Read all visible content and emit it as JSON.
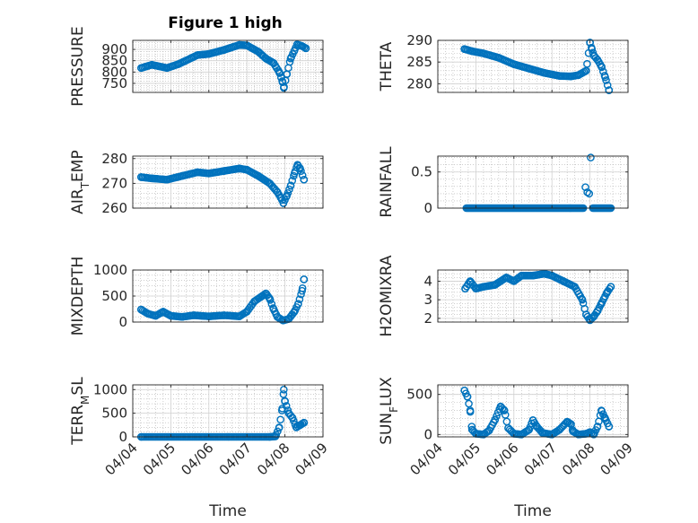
{
  "title": "Figure 1 high",
  "colors": {
    "marker": "#0072BD",
    "axis": "#262626",
    "grid": "#b0b0b0"
  },
  "chart_data": [
    {
      "type": "scatter",
      "id": "pressure",
      "ylabel": "PRESSURE",
      "ylim": [
        710,
        940
      ],
      "yticks": [
        750,
        800,
        850,
        900
      ],
      "ytick_labels": [
        "750",
        "800",
        "850",
        "900"
      ],
      "xlim": [
        0,
        5
      ],
      "xticks": [
        0,
        1,
        2,
        3,
        4,
        5
      ],
      "xtick_labels": [
        "04/04",
        "04/05",
        "04/06",
        "04/07",
        "04/08",
        "04/09"
      ],
      "x_knots": [
        0.22,
        0.5,
        0.9,
        1.2,
        1.7,
        2.0,
        2.4,
        2.8,
        3.0,
        3.3,
        3.5,
        3.7,
        3.85,
        3.93,
        3.97,
        4.05,
        4.15,
        4.25,
        4.32,
        4.45,
        4.55
      ],
      "y_knots": [
        818,
        832,
        818,
        835,
        875,
        880,
        898,
        920,
        918,
        890,
        860,
        840,
        800,
        760,
        730,
        790,
        860,
        895,
        922,
        915,
        905
      ]
    },
    {
      "type": "scatter",
      "id": "theta",
      "ylabel": "THETA",
      "ylim": [
        278,
        290
      ],
      "yticks": [
        280,
        285,
        290
      ],
      "ytick_labels": [
        "280",
        "285",
        "290"
      ],
      "xlim": [
        0,
        5
      ],
      "xticks": [
        0,
        1,
        2,
        3,
        4,
        5
      ],
      "xtick_labels": [
        "04/04",
        "04/05",
        "04/06",
        "04/07",
        "04/08",
        "04/09"
      ],
      "x_knots": [
        0.7,
        0.9,
        1.2,
        1.6,
        2.0,
        2.4,
        2.8,
        3.2,
        3.5,
        3.7,
        3.9,
        4.0,
        4.05,
        4.1,
        4.2,
        4.3,
        4.4,
        4.5
      ],
      "y_knots": [
        288.0,
        287.5,
        287.0,
        286.0,
        284.5,
        283.5,
        282.5,
        281.8,
        281.7,
        282.0,
        283.0,
        289.5,
        288.0,
        286.5,
        285.5,
        284.0,
        281.5,
        278.5
      ]
    },
    {
      "type": "scatter",
      "id": "air_temp",
      "ylabel": "AIR",
      "ylabel_sub": "T",
      "ylabel_suffix": "EMP",
      "ylim": [
        260,
        281
      ],
      "yticks": [
        260,
        270,
        280
      ],
      "ytick_labels": [
        "260",
        "270",
        "280"
      ],
      "xlim": [
        0,
        5
      ],
      "xticks": [
        0,
        1,
        2,
        3,
        4,
        5
      ],
      "xtick_labels": [
        "04/04",
        "04/05",
        "04/06",
        "04/07",
        "04/08",
        "04/09"
      ],
      "x_knots": [
        0.22,
        0.5,
        0.9,
        1.3,
        1.7,
        2.0,
        2.4,
        2.8,
        3.0,
        3.3,
        3.6,
        3.8,
        3.9,
        3.96,
        4.05,
        4.15,
        4.25,
        4.33,
        4.4,
        4.5
      ],
      "y_knots": [
        272.5,
        272.0,
        271.5,
        273.0,
        274.5,
        274.0,
        275.0,
        276.0,
        275.5,
        273.0,
        270.0,
        266.5,
        264.0,
        262.0,
        265.0,
        269.0,
        274.0,
        277.5,
        276.0,
        271.5
      ]
    },
    {
      "type": "scatter",
      "id": "rainfall",
      "ylabel": "RAINFALL",
      "ylim": [
        0,
        0.72
      ],
      "yticks": [
        0,
        0.5
      ],
      "ytick_labels": [
        "0",
        "0.5"
      ],
      "xlim": [
        0,
        5
      ],
      "xticks": [
        0,
        1,
        2,
        3,
        4,
        5
      ],
      "xtick_labels": [
        "04/04",
        "04/05",
        "04/06",
        "04/07",
        "04/08",
        "04/09"
      ],
      "x_range": [
        0.75,
        4.55
      ],
      "baseline": 0,
      "spikes": [
        [
          3.88,
          0.29
        ],
        [
          3.93,
          0.22
        ],
        [
          3.98,
          0.2
        ],
        [
          4.02,
          0.7
        ]
      ]
    },
    {
      "type": "scatter",
      "id": "mixdepth",
      "ylabel": "MIXDEPTH",
      "ylim": [
        0,
        1000
      ],
      "yticks": [
        0,
        500,
        1000
      ],
      "ytick_labels": [
        "0",
        "500",
        "1000"
      ],
      "xlim": [
        0,
        5
      ],
      "xticks": [
        0,
        1,
        2,
        3,
        4,
        5
      ],
      "xtick_labels": [
        "04/04",
        "04/05",
        "04/06",
        "04/07",
        "04/08",
        "04/09"
      ],
      "x_knots": [
        0.22,
        0.4,
        0.6,
        0.8,
        1.0,
        1.3,
        1.6,
        2.0,
        2.4,
        2.8,
        3.0,
        3.2,
        3.4,
        3.5,
        3.6,
        3.7,
        3.8,
        3.95,
        4.1,
        4.25,
        4.35,
        4.45,
        4.5
      ],
      "y_knots": [
        240,
        160,
        120,
        200,
        120,
        100,
        130,
        110,
        130,
        110,
        200,
        400,
        500,
        550,
        450,
        250,
        100,
        30,
        60,
        200,
        350,
        600,
        820
      ]
    },
    {
      "type": "scatter",
      "id": "h2omixra",
      "ylabel": "H2OMIXRA",
      "ylim": [
        1.8,
        4.6
      ],
      "yticks": [
        2,
        3,
        4
      ],
      "ytick_labels": [
        "2",
        "3",
        "4"
      ],
      "xlim": [
        0,
        5
      ],
      "xticks": [
        0,
        1,
        2,
        3,
        4,
        5
      ],
      "xtick_labels": [
        "04/04",
        "04/05",
        "04/06",
        "04/07",
        "04/08",
        "04/09"
      ],
      "x_knots": [
        0.72,
        0.85,
        1.0,
        1.2,
        1.5,
        1.8,
        2.0,
        2.2,
        2.5,
        2.8,
        3.0,
        3.3,
        3.6,
        3.8,
        3.9,
        4.0,
        4.1,
        4.2,
        4.3,
        4.45,
        4.55
      ],
      "y_knots": [
        3.6,
        4.0,
        3.6,
        3.7,
        3.8,
        4.2,
        4.0,
        4.3,
        4.3,
        4.4,
        4.3,
        4.0,
        3.7,
        3.0,
        2.2,
        1.9,
        2.1,
        2.4,
        2.8,
        3.4,
        3.7
      ]
    },
    {
      "type": "scatter",
      "id": "terr_msl",
      "ylabel": "TERR",
      "ylabel_sub": "M",
      "ylabel_suffix": "SL",
      "xlabel": "Time",
      "ylim": [
        0,
        1100
      ],
      "yticks": [
        0,
        500,
        1000
      ],
      "ytick_labels": [
        "0",
        "500",
        "1000"
      ],
      "xlim": [
        0,
        5
      ],
      "xticks": [
        0,
        1,
        2,
        3,
        4,
        5
      ],
      "xtick_labels": [
        "04/04",
        "04/05",
        "04/06",
        "04/07",
        "04/08",
        "04/09"
      ],
      "x_knots": [
        0.22,
        3.6,
        3.75,
        3.85,
        3.93,
        3.97,
        4.0,
        4.1,
        4.2,
        4.3,
        4.4,
        4.5
      ],
      "y_knots": [
        0,
        0,
        10,
        200,
        600,
        1000,
        750,
        500,
        400,
        200,
        250,
        300
      ]
    },
    {
      "type": "scatter",
      "id": "sun_flux",
      "ylabel": "SUN",
      "ylabel_sub": "F",
      "ylabel_suffix": "LUX",
      "xlabel": "Time",
      "ylim": [
        -30,
        620
      ],
      "yticks": [
        0,
        500
      ],
      "ytick_labels": [
        "0",
        "500"
      ],
      "xlim": [
        0,
        5
      ],
      "xticks": [
        0,
        1,
        2,
        3,
        4,
        5
      ],
      "xtick_labels": [
        "04/04",
        "04/05",
        "04/06",
        "04/07",
        "04/08",
        "04/09"
      ],
      "x_knots": [
        0.7,
        0.78,
        0.85,
        0.9,
        1.0,
        1.2,
        1.35,
        1.5,
        1.65,
        1.75,
        1.85,
        2.0,
        2.2,
        2.4,
        2.5,
        2.6,
        2.75,
        3.0,
        3.2,
        3.4,
        3.5,
        3.55,
        3.7,
        3.9,
        4.0,
        4.1,
        4.2,
        4.3,
        4.4,
        4.5
      ],
      "y_knots": [
        550,
        470,
        300,
        60,
        10,
        0,
        50,
        180,
        350,
        300,
        80,
        10,
        0,
        60,
        180,
        100,
        20,
        0,
        60,
        160,
        130,
        40,
        0,
        10,
        30,
        0,
        100,
        300,
        200,
        100
      ]
    }
  ]
}
